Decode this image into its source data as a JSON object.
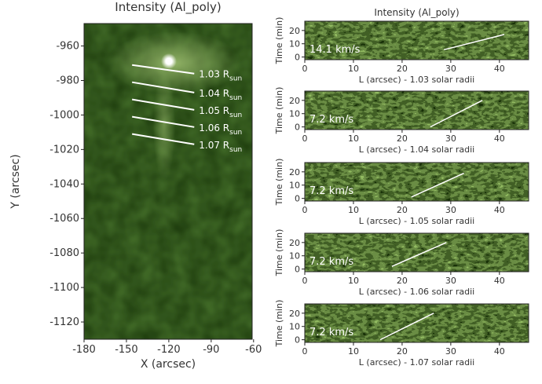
{
  "chart_data": [
    {
      "type": "image",
      "title": "Intensity (Al_poly)",
      "xlabel": "X (arcsec)",
      "ylabel": "Y (arcsec)",
      "xlim": [
        -180,
        -61
      ],
      "ylim": [
        -1130,
        -947
      ],
      "xticks": [
        -180,
        -150,
        -120,
        -90,
        -60
      ],
      "yticks": [
        -960,
        -980,
        -1000,
        -1020,
        -1040,
        -1060,
        -1080,
        -1100,
        -1120
      ],
      "lines": [
        {
          "x": [
            -146,
            -102
          ],
          "y": [
            -971,
            -976
          ],
          "label": "1.03 R",
          "sub": "sun"
        },
        {
          "x": [
            -146,
            -102
          ],
          "y": [
            -981,
            -987
          ],
          "label": "1.04 R",
          "sub": "sun"
        },
        {
          "x": [
            -146,
            -102
          ],
          "y": [
            -991,
            -997
          ],
          "label": "1.05 R",
          "sub": "sun"
        },
        {
          "x": [
            -146,
            -102
          ],
          "y": [
            -1001,
            -1007
          ],
          "label": "1.06 R",
          "sub": "sun"
        },
        {
          "x": [
            -146,
            -102
          ],
          "y": [
            -1011,
            -1017
          ],
          "label": "1.07 R",
          "sub": "sun"
        }
      ]
    },
    {
      "type": "image",
      "title": "Intensity (Al_poly)",
      "xlabel": "L (arcsec) - 1.03 solar radii",
      "ylabel": "Time (min)",
      "xlim": [
        0,
        46
      ],
      "ylim": [
        -2,
        27
      ],
      "xticks": [
        0,
        10,
        20,
        30,
        40
      ],
      "yticks": [
        0,
        10,
        20
      ],
      "annotation": "14.1 km/s",
      "fit": {
        "x": [
          28.6,
          41
        ],
        "y": [
          5.5,
          17
        ]
      }
    },
    {
      "type": "image",
      "xlabel": "L (arcsec) - 1.04 solar radii",
      "ylabel": "Time (min)",
      "xlim": [
        0,
        46
      ],
      "ylim": [
        -2,
        27
      ],
      "xticks": [
        0,
        10,
        20,
        30,
        40
      ],
      "yticks": [
        0,
        10,
        20
      ],
      "annotation": "7.2 km/s",
      "fit": {
        "x": [
          25.8,
          36.5
        ],
        "y": [
          0,
          20
        ]
      }
    },
    {
      "type": "image",
      "xlabel": "L (arcsec) - 1.05 solar radii",
      "ylabel": "Time (min)",
      "xlim": [
        0,
        46
      ],
      "ylim": [
        -2,
        27
      ],
      "xticks": [
        0,
        10,
        20,
        30,
        40
      ],
      "yticks": [
        0,
        10,
        20
      ],
      "annotation": "7.2 km/s",
      "fit": {
        "x": [
          21.9,
          32.7
        ],
        "y": [
          1,
          19
        ]
      }
    },
    {
      "type": "image",
      "xlabel": "L (arcsec) - 1.06 solar radii",
      "ylabel": "Time (min)",
      "xlim": [
        0,
        46
      ],
      "ylim": [
        -2,
        27
      ],
      "xticks": [
        0,
        10,
        20,
        30,
        40
      ],
      "yticks": [
        0,
        10,
        20
      ],
      "annotation": "7.2 km/s",
      "fit": {
        "x": [
          17.9,
          29.1
        ],
        "y": [
          2,
          20
        ]
      }
    },
    {
      "type": "image",
      "xlabel": "L (arcsec) - 1.07 solar radii",
      "ylabel": "Time (min)",
      "xlim": [
        0,
        46
      ],
      "ylim": [
        -2,
        27
      ],
      "xticks": [
        0,
        10,
        20,
        30,
        40
      ],
      "yticks": [
        0,
        10,
        20
      ],
      "annotation": "7.2 km/s",
      "fit": {
        "x": [
          15.5,
          26.5
        ],
        "y": [
          0,
          20
        ]
      }
    }
  ]
}
